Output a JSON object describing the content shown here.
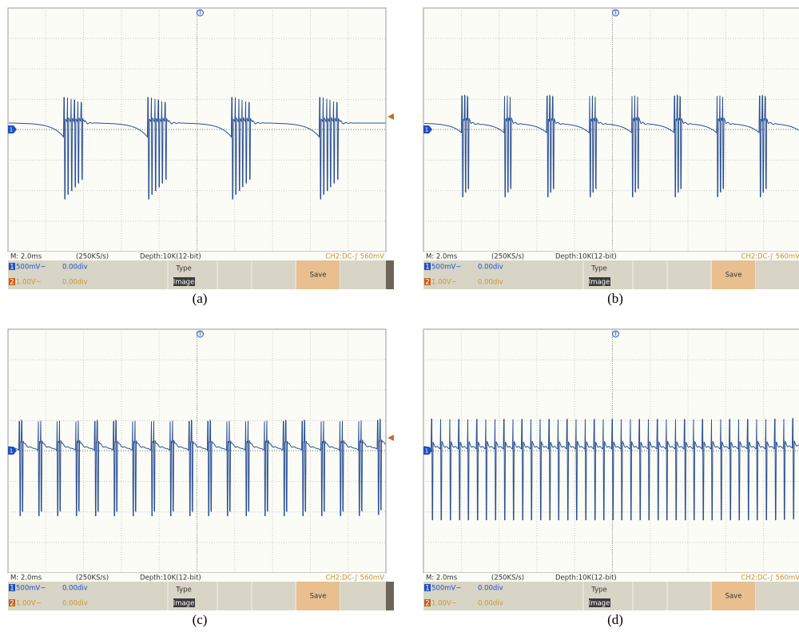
{
  "panels": [
    {
      "status": {
        "timebase": "M: 2.0ms",
        "rate": "(250KS/s)",
        "depth": "Depth:10K(12-bit)",
        "trigger": "CH2:DC-∫ 560mV"
      },
      "markers": {
        "trigger": "T",
        "ch1": "1"
      },
      "menu": {
        "ch1_num": "1",
        "ch1_scale": "500mV~",
        "ch1_offset": "0.00div",
        "ch2_num": "2",
        "ch2_scale": "1.00V~",
        "ch2_offset": "0.00div",
        "type_label": "Type",
        "type_value": "Image",
        "save": "Save"
      },
      "caption": "(a)"
    },
    {
      "status": {
        "timebase": "M: 2.0ms",
        "rate": "(250KS/s)",
        "depth": "Depth:10K(12-bit)",
        "trigger": "CH2:DC-∫ 560mV"
      },
      "markers": {
        "trigger": "T",
        "ch1": "1"
      },
      "menu": {
        "ch1_num": "1",
        "ch1_scale": "500mV~",
        "ch1_offset": "0.00div",
        "ch2_num": "2",
        "ch2_scale": "1.00V~",
        "ch2_offset": "0.00div",
        "type_label": "Type",
        "type_value": "Image",
        "save": "Save"
      },
      "caption": "(b)"
    },
    {
      "status": {
        "timebase": "M: 2.0ms",
        "rate": "(250KS/s)",
        "depth": "Depth:10K(12-bit)",
        "trigger": "CH2:DC-∫ 560mV"
      },
      "markers": {
        "trigger": "T",
        "ch1": "1"
      },
      "menu": {
        "ch1_num": "1",
        "ch1_scale": "500mV~",
        "ch1_offset": "0.00div",
        "ch2_num": "2",
        "ch2_scale": "1.00V~",
        "ch2_offset": "0.00div",
        "type_label": "Type",
        "type_value": "Image",
        "save": "Save"
      },
      "caption": "(c)"
    },
    {
      "status": {
        "timebase": "M: 2.0ms",
        "rate": "(250KS/s)",
        "depth": "Depth:10K(12-bit)",
        "trigger": "CH2:DC-∫ 560mV"
      },
      "markers": {
        "trigger": "T",
        "ch1": "1"
      },
      "menu": {
        "ch1_num": "1",
        "ch1_scale": "500mV~",
        "ch1_offset": "0.00div",
        "ch2_num": "2",
        "ch2_scale": "1.00V~",
        "ch2_offset": "0.00div",
        "type_label": "Type",
        "type_value": "Image",
        "save": "Save"
      },
      "caption": "(d)"
    }
  ]
}
